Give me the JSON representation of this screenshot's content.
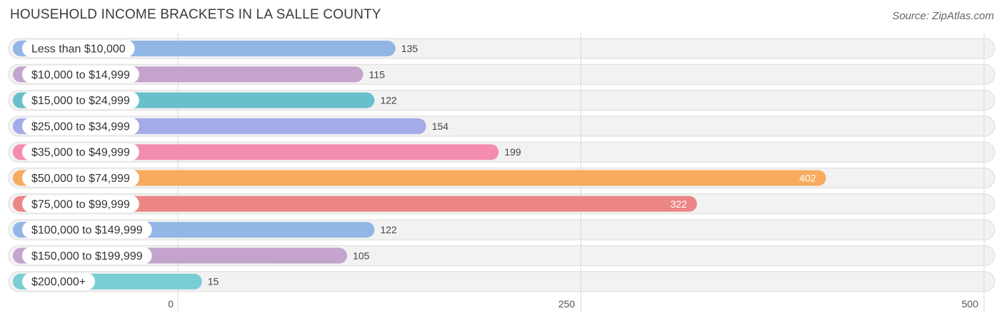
{
  "header": {
    "title": "HOUSEHOLD INCOME BRACKETS IN LA SALLE COUNTY",
    "source": "Source: ZipAtlas.com"
  },
  "chart_data": {
    "type": "bar",
    "orientation": "horizontal",
    "title": "HOUSEHOLD INCOME BRACKETS IN LA SALLE COUNTY",
    "xlabel": "",
    "ylabel": "",
    "xlim": [
      0,
      500
    ],
    "ticks": [
      0,
      250,
      500
    ],
    "tick_labels": [
      "0",
      "250",
      "500"
    ],
    "grid": true,
    "categories": [
      "Less than $10,000",
      "$10,000 to $14,999",
      "$15,000 to $24,999",
      "$25,000 to $34,999",
      "$35,000 to $49,999",
      "$50,000 to $74,999",
      "$75,000 to $99,999",
      "$100,000 to $149,999",
      "$150,000 to $199,999",
      "$200,000+"
    ],
    "values": [
      135,
      115,
      122,
      154,
      199,
      402,
      322,
      122,
      105,
      15
    ],
    "colors": [
      "#92b7e6",
      "#c4a4cc",
      "#68c0cd",
      "#a3ace8",
      "#f48caf",
      "#f8ab5e",
      "#ec8684",
      "#92b7e6",
      "#c4a4cc",
      "#79cdd4"
    ]
  }
}
